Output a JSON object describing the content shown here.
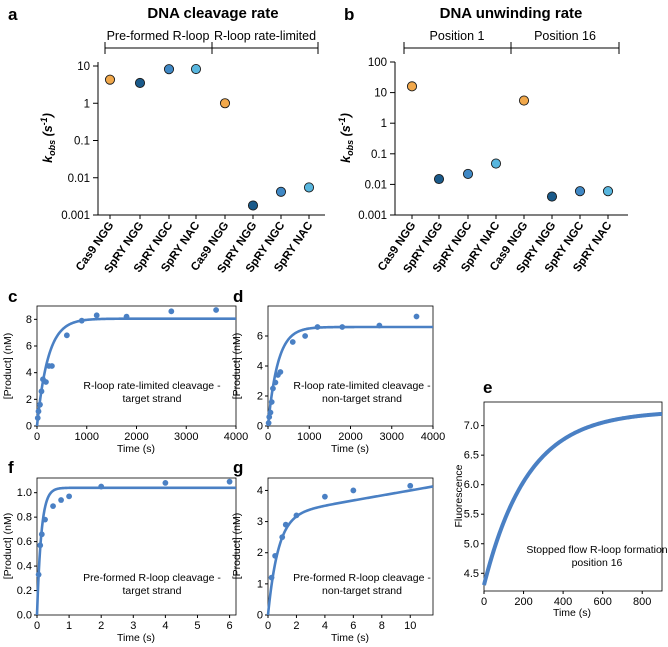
{
  "chart_data": [
    {
      "id": "a",
      "type": "scatter",
      "panel_label": "a",
      "title": "DNA cleavage rate",
      "yscale": "log",
      "ylim": [
        0.001,
        10
      ],
      "yticks": [
        10,
        1,
        0.1,
        0.01,
        0.001
      ],
      "ytick_labels": [
        "10",
        "1",
        "0.1",
        "0.01",
        "0.001"
      ],
      "ylabel": {
        "main": "k",
        "sub": "obs",
        "unit": " (s",
        "exp": "-1",
        "close": ")"
      },
      "groups": [
        {
          "label": "Pre-formed R-loop",
          "from": 0,
          "to": 3
        },
        {
          "label": "R-loop rate-limited",
          "from": 4,
          "to": 7
        }
      ],
      "categories": [
        "Cas9 NGG",
        "SpRY NGG",
        "SpRY NGC",
        "SpRY NAC",
        "Cas9 NGG",
        "SpRY NGG",
        "SpRY NGC",
        "SpRY NAC"
      ],
      "values": [
        4.3,
        3.5,
        8.2,
        8.3,
        1.0,
        0.0018,
        0.0042,
        0.0055
      ],
      "point_colors": [
        "#f1a84b",
        "#1a5a8a",
        "#3f88c5",
        "#58b6de",
        "#f1a84b",
        "#1a5a8a",
        "#3f88c5",
        "#58b6de"
      ]
    },
    {
      "id": "b",
      "type": "scatter",
      "panel_label": "b",
      "title": "DNA unwinding rate",
      "yscale": "log",
      "ylim": [
        0.001,
        100
      ],
      "yticks": [
        100,
        10,
        1,
        0.1,
        0.01,
        0.001
      ],
      "ytick_labels": [
        "100",
        "10",
        "1",
        "0.1",
        "0.01",
        "0.001"
      ],
      "ylabel": {
        "main": "k",
        "sub": "obs",
        "unit": " (s",
        "exp": "-1",
        "close": ")"
      },
      "groups": [
        {
          "label": "Position 1",
          "from": 0,
          "to": 3
        },
        {
          "label": "Position 16",
          "from": 4,
          "to": 7
        }
      ],
      "categories": [
        "Cas9 NGG",
        "SpRY NGG",
        "SpRY NGC",
        "SpRY NAC",
        "Cas9 NGG",
        "SpRY NGG",
        "SpRY NGC",
        "SpRY NAC"
      ],
      "values": [
        16,
        0.015,
        0.022,
        0.048,
        5.5,
        0.004,
        0.006,
        0.006
      ],
      "point_colors": [
        "#f1a84b",
        "#1a5a8a",
        "#3f88c5",
        "#58b6de",
        "#f1a84b",
        "#1a5a8a",
        "#3f88c5",
        "#58b6de"
      ]
    },
    {
      "id": "c",
      "type": "scatter",
      "panel_label": "c",
      "xlabel": "Time (s)",
      "ylabel": "[Product] (nM)",
      "xlim": [
        0,
        4000
      ],
      "ylim": [
        0,
        9
      ],
      "xticks": [
        0,
        1000,
        2000,
        3000,
        4000
      ],
      "yticks": [
        0,
        2,
        4,
        6,
        8
      ],
      "annotation": [
        "R-loop rate-limited cleavage -",
        "target strand"
      ],
      "x": [
        15,
        30,
        60,
        90,
        120,
        180,
        240,
        300,
        600,
        900,
        1200,
        1800,
        2700,
        3600
      ],
      "y": [
        0.6,
        1.1,
        1.6,
        2.6,
        3.5,
        3.3,
        4.5,
        4.5,
        6.8,
        7.9,
        8.3,
        8.2,
        8.6,
        8.7
      ],
      "fit": {
        "model": "single_exponential",
        "amplitude": 8.05,
        "k": 0.0045,
        "offset": 0,
        "linear": 0
      },
      "color": "#4a80c4"
    },
    {
      "id": "d",
      "type": "scatter",
      "panel_label": "d",
      "xlabel": "Time (s)",
      "ylabel": "[Product] (nM)",
      "xlim": [
        0,
        4000
      ],
      "ylim": [
        0,
        8
      ],
      "xticks": [
        0,
        1000,
        2000,
        3000,
        4000
      ],
      "yticks": [
        0,
        2,
        4,
        6
      ],
      "annotation": [
        "R-loop rate-limited cleavage -",
        "non-target strand"
      ],
      "x": [
        15,
        30,
        60,
        90,
        120,
        180,
        240,
        300,
        600,
        900,
        1200,
        1800,
        2700,
        3600
      ],
      "y": [
        0.2,
        0.6,
        0.9,
        1.6,
        2.5,
        2.9,
        3.4,
        3.6,
        5.6,
        6.0,
        6.6,
        6.6,
        6.7,
        7.3
      ],
      "fit": {
        "model": "single_exponential",
        "amplitude": 6.6,
        "k": 0.0042,
        "offset": 0,
        "linear": 0
      },
      "color": "#4a80c4"
    },
    {
      "id": "e",
      "type": "line",
      "panel_label": "e",
      "xlabel": "Time (s)",
      "ylabel": "Fluorescence",
      "xlim": [
        0,
        900
      ],
      "ylim": [
        4.2,
        7.4
      ],
      "xticks": [
        0,
        200,
        400,
        600,
        800
      ],
      "yticks": [
        4.5,
        5.0,
        5.5,
        6.0,
        6.5,
        7.0
      ],
      "ytick_labels": [
        "4.5",
        "5.0",
        "5.5",
        "6.0",
        "6.5",
        "7.0"
      ],
      "annotation": [
        "Stopped flow R-loop formation",
        "position 16"
      ],
      "fit": {
        "model": "single_exponential",
        "amplitude": 2.95,
        "k": 0.0045,
        "offset": 4.3,
        "linear": 0
      },
      "color": "#4a80c4"
    },
    {
      "id": "f",
      "type": "scatter",
      "panel_label": "f",
      "xlabel": "Time (s)",
      "ylabel": "[Product] (nM)",
      "xlim": [
        0,
        6.2
      ],
      "ylim": [
        0,
        1.12
      ],
      "xticks": [
        0,
        1,
        2,
        3,
        4,
        5,
        6
      ],
      "yticks": [
        0,
        0.2,
        0.4,
        0.6,
        0.8,
        1.0
      ],
      "ytick_labels": [
        "0.0",
        "0.2",
        "0.4",
        "0.6",
        "0.8",
        "1.0"
      ],
      "annotation": [
        "Pre-formed R-loop cleavage -",
        "target strand"
      ],
      "x": [
        0.05,
        0.1,
        0.15,
        0.25,
        0.5,
        0.75,
        1.0,
        2.0,
        4.0,
        6.0
      ],
      "y": [
        0.33,
        0.57,
        0.66,
        0.78,
        0.89,
        0.94,
        0.97,
        1.05,
        1.08,
        1.09
      ],
      "fit": {
        "model": "single_exponential",
        "amplitude": 1.04,
        "k": 7.5,
        "offset": 0,
        "linear": 0
      },
      "color": "#4a80c4"
    },
    {
      "id": "g",
      "type": "scatter",
      "panel_label": "g",
      "xlabel": "Time (s)",
      "ylabel": "[Product] (nM)",
      "xlim": [
        0,
        11.6
      ],
      "ylim": [
        0,
        4.4
      ],
      "xticks": [
        0,
        2,
        4,
        6,
        8,
        10
      ],
      "yticks": [
        0,
        1,
        2,
        3,
        4
      ],
      "annotation": [
        "Pre-formed R-loop cleavage -",
        "non-target strand"
      ],
      "x": [
        0.25,
        0.5,
        1.0,
        1.25,
        2.0,
        4.0,
        6.0,
        10.0
      ],
      "y": [
        1.2,
        1.9,
        2.5,
        2.9,
        3.2,
        3.8,
        4.0,
        4.15
      ],
      "fit": {
        "model": "single_exponential",
        "amplitude": 3.2,
        "k": 1.4,
        "offset": 0,
        "linear": 0.08
      },
      "color": "#4a80c4"
    }
  ]
}
